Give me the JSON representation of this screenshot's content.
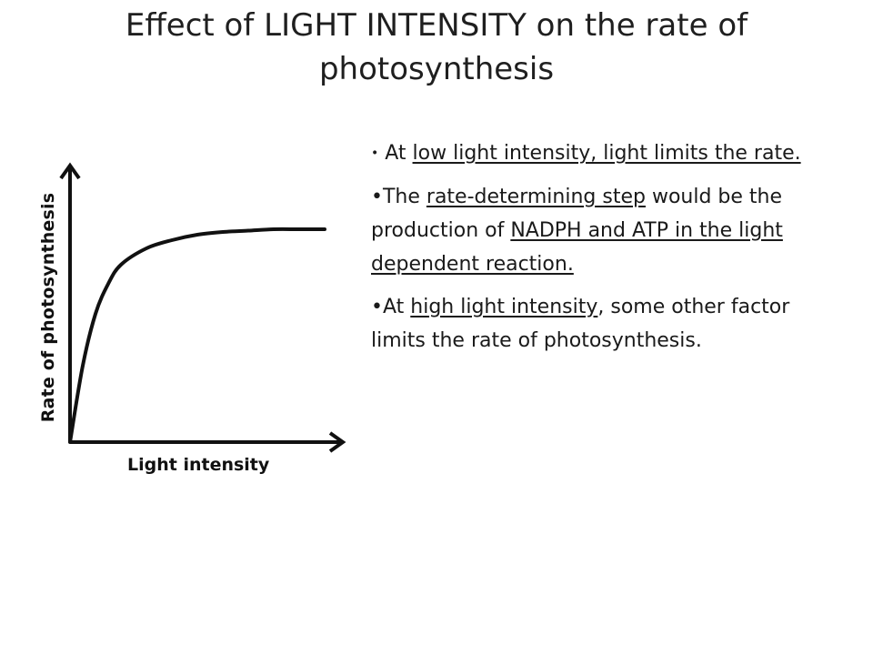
{
  "title": {
    "line1": "Effect of LIGHT INTENSITY on the rate of",
    "line2": "photosynthesis"
  },
  "chart_data": {
    "type": "line",
    "xlabel": "Light intensity",
    "ylabel": "Rate of photosynthesis",
    "grid": false,
    "series": [
      {
        "x": [
          0,
          0.05,
          0.1,
          0.15,
          0.2,
          0.3,
          0.4,
          0.5,
          0.6,
          0.7,
          0.8,
          0.9,
          1.0
        ],
        "values": [
          0,
          0.28,
          0.47,
          0.58,
          0.65,
          0.71,
          0.74,
          0.76,
          0.77,
          0.775,
          0.78,
          0.78,
          0.78
        ]
      }
    ],
    "xlim": [
      0,
      1
    ],
    "ylim": [
      0,
      1
    ]
  },
  "notes": [
    {
      "bullet": "•",
      "parts": [
        {
          "text": " At ",
          "u": false
        },
        {
          "text": "low light intensity, light limits the rate.",
          "u": true
        }
      ]
    },
    {
      "bullet": "•",
      "parts": [
        {
          "text": "The ",
          "u": false
        },
        {
          "text": "rate-determining step",
          "u": true
        },
        {
          "text": " would be the production of ",
          "u": false
        },
        {
          "text": "NADPH and ATP in the light dependent reaction.",
          "u": true
        }
      ]
    },
    {
      "bullet": "•",
      "parts": [
        {
          "text": "At ",
          "u": false
        },
        {
          "text": "high light intensity",
          "u": true
        },
        {
          "text": ", some other factor limits the rate of photosynthesis.",
          "u": false
        }
      ]
    }
  ]
}
